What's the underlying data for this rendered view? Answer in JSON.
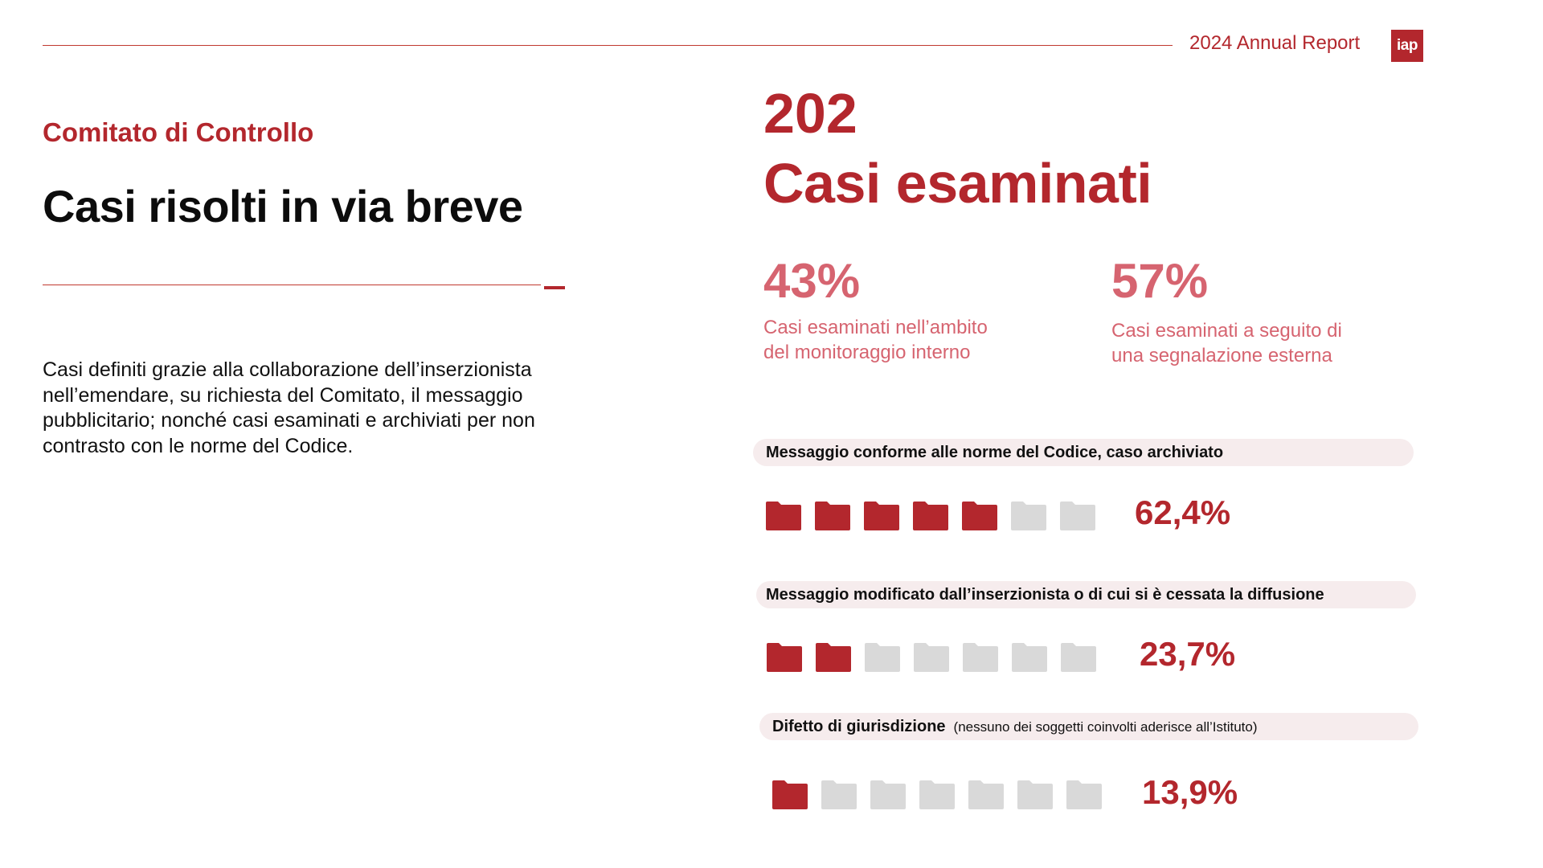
{
  "header": {
    "report_title": "2024 Annual Report",
    "logo_text": "iap"
  },
  "left": {
    "section_label": "Comitato di Controllo",
    "title": "Casi risolti in via breve",
    "description": "Casi definiti grazie alla collaborazione dell’inserzionista nell’emendare, su richiesta del Comitato, il messaggio pubblicitario; nonché casi esaminati e archiviati per non contrasto con le norme del Codice."
  },
  "summary": {
    "total": "202",
    "total_label": "Casi esaminati",
    "stats": [
      {
        "percent": "43%",
        "description": "Casi esaminati nell’ambito del monitoraggio interno"
      },
      {
        "percent": "57%",
        "description": "Casi esaminati a seguito di una segnalazione esterna"
      }
    ]
  },
  "categories": [
    {
      "label": "Messaggio conforme alle norme del Codice, caso archiviato",
      "note": "",
      "percent_label": "62,4%",
      "filled_icons": 5,
      "total_icons": 7
    },
    {
      "label": "Messaggio modificato dall’inserzionista o di cui si è cessata la diffusione",
      "note": "",
      "percent_label": "23,7%",
      "filled_icons": 2,
      "total_icons": 7
    },
    {
      "label": "Difetto di giurisdizione",
      "note": "(nessuno dei soggetti coinvolti aderisce all’Istituto)",
      "percent_label": "13,9%",
      "filled_icons": 1,
      "total_icons": 7
    }
  ],
  "colors": {
    "accent": "#b3272d",
    "accent_light": "#d66470",
    "icon_filled": "#b3272d",
    "icon_empty": "#d9d9d9",
    "pill_bg": "#f6eced"
  },
  "icons": {
    "folder": "folder-icon"
  }
}
